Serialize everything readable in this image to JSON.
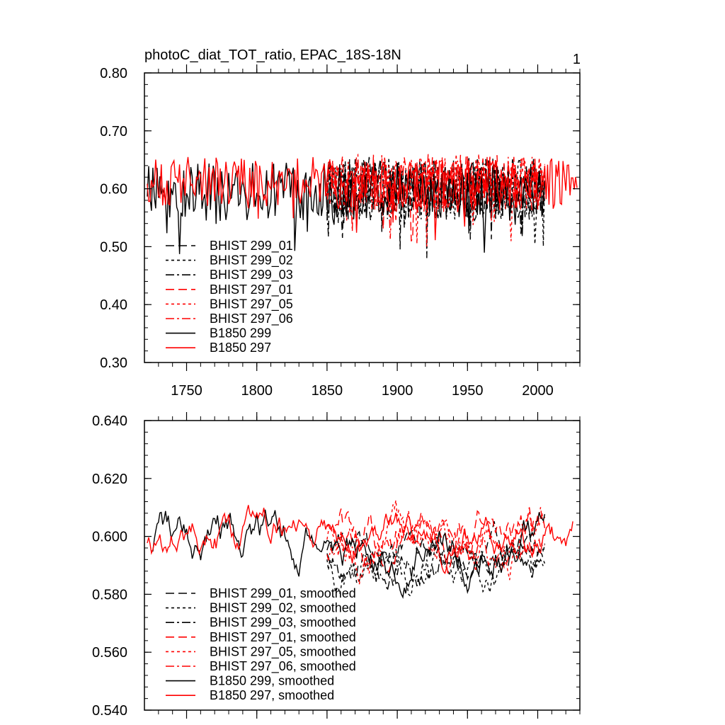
{
  "page": {
    "title": "photoC_diat_TOT_ratio, EPAC_18S-18N",
    "panel_number": "1"
  },
  "chart_data": [
    {
      "type": "line",
      "title": "photoC_diat_TOT_ratio, EPAC_18S-18N",
      "corner_label": "1",
      "xlabel": "",
      "ylabel": "",
      "xlim": [
        1720,
        2030
      ],
      "ylim": [
        0.3,
        0.8
      ],
      "x_ticks": [
        1750,
        1800,
        1850,
        1900,
        1950,
        2000
      ],
      "x_tick_labels": [
        "1750",
        "1800",
        "1850",
        "1900",
        "1950",
        "2000"
      ],
      "y_ticks": [
        0.3,
        0.4,
        0.5,
        0.6,
        0.7,
        0.8
      ],
      "y_tick_labels": [
        "0.30",
        "0.40",
        "0.50",
        "0.60",
        "0.70",
        "0.80"
      ],
      "legend_position": "bottom-left",
      "series": [
        {
          "name": "BHIST 299_01",
          "color": "#000000",
          "dash": "long-dash",
          "start": 1850,
          "end": 2005,
          "mean": 0.6,
          "amp": 0.055,
          "seed": 11
        },
        {
          "name": "BHIST 299_02",
          "color": "#000000",
          "dash": "short-dash",
          "start": 1850,
          "end": 2005,
          "mean": 0.6,
          "amp": 0.055,
          "seed": 12
        },
        {
          "name": "BHIST 299_03",
          "color": "#000000",
          "dash": "dash-dot",
          "start": 1850,
          "end": 2005,
          "mean": 0.6,
          "amp": 0.055,
          "seed": 13
        },
        {
          "name": "BHIST 297_01",
          "color": "#ff0000",
          "dash": "long-dash",
          "start": 1850,
          "end": 2005,
          "mean": 0.61,
          "amp": 0.05,
          "seed": 14
        },
        {
          "name": "BHIST 297_05",
          "color": "#ff0000",
          "dash": "short-dash",
          "start": 1850,
          "end": 2005,
          "mean": 0.61,
          "amp": 0.05,
          "seed": 15
        },
        {
          "name": "BHIST 297_06",
          "color": "#ff0000",
          "dash": "dash-dot",
          "start": 1850,
          "end": 2005,
          "mean": 0.61,
          "amp": 0.05,
          "seed": 16
        },
        {
          "name": "B1850 299",
          "color": "#000000",
          "dash": "solid",
          "start": 1722,
          "end": 2005,
          "mean": 0.595,
          "amp": 0.05,
          "seed": 17
        },
        {
          "name": "B1850 297",
          "color": "#ff0000",
          "dash": "solid",
          "start": 1722,
          "end": 2028,
          "mean": 0.61,
          "amp": 0.045,
          "seed": 18
        }
      ]
    },
    {
      "type": "line",
      "title": "",
      "xlabel": "",
      "ylabel": "",
      "xlim": [
        1720,
        2030
      ],
      "ylim": [
        0.54,
        0.64
      ],
      "x_ticks": [
        1750,
        1800,
        1850,
        1900,
        1950,
        2000
      ],
      "x_tick_labels": [],
      "y_ticks": [
        0.54,
        0.56,
        0.58,
        0.6,
        0.62,
        0.64
      ],
      "y_tick_labels": [
        "0.540",
        "0.560",
        "0.580",
        "0.600",
        "0.620",
        "0.640"
      ],
      "legend_position": "bottom-left",
      "series": [
        {
          "name": "BHIST 299_01, smoothed",
          "color": "#000000",
          "dash": "long-dash",
          "start": 1850,
          "end": 2005,
          "mean": 0.594,
          "amp": 0.01,
          "seed": 21
        },
        {
          "name": "BHIST 299_02, smoothed",
          "color": "#000000",
          "dash": "short-dash",
          "start": 1850,
          "end": 2005,
          "mean": 0.59,
          "amp": 0.012,
          "seed": 22
        },
        {
          "name": "BHIST 299_03, smoothed",
          "color": "#000000",
          "dash": "dash-dot",
          "start": 1850,
          "end": 2005,
          "mean": 0.592,
          "amp": 0.01,
          "seed": 23
        },
        {
          "name": "BHIST 297_01, smoothed",
          "color": "#ff0000",
          "dash": "long-dash",
          "start": 1850,
          "end": 2005,
          "mean": 0.6,
          "amp": 0.013,
          "seed": 24
        },
        {
          "name": "BHIST 297_05, smoothed",
          "color": "#ff0000",
          "dash": "short-dash",
          "start": 1850,
          "end": 2005,
          "mean": 0.595,
          "amp": 0.013,
          "seed": 25
        },
        {
          "name": "BHIST 297_06, smoothed",
          "color": "#ff0000",
          "dash": "dash-dot",
          "start": 1850,
          "end": 2005,
          "mean": 0.597,
          "amp": 0.011,
          "seed": 26
        },
        {
          "name": "B1850 299, smoothed",
          "color": "#000000",
          "dash": "solid",
          "start": 1725,
          "end": 2005,
          "mean": 0.598,
          "amp": 0.012,
          "seed": 27
        },
        {
          "name": "B1850 297, smoothed",
          "color": "#ff0000",
          "dash": "solid",
          "start": 1722,
          "end": 2025,
          "mean": 0.6,
          "amp": 0.011,
          "seed": 28
        }
      ]
    }
  ]
}
